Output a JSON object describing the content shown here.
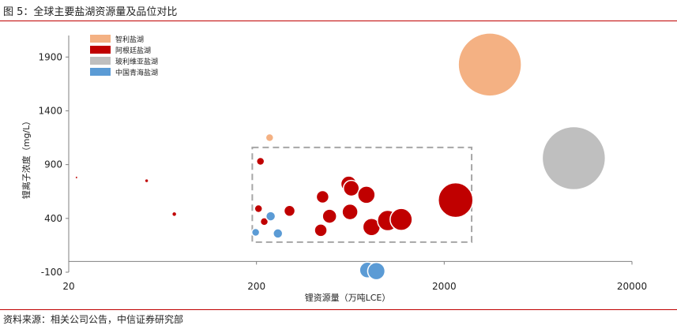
{
  "figure": {
    "title": "图 5：全球主要盐湖资源量及品位对比",
    "source": "资料来源：相关公司公告，中信证券研究部"
  },
  "colors": {
    "chile": "#f4b183",
    "argentina": "#c00000",
    "bolivia": "#bfbfbf",
    "china": "#5b9bd5",
    "rule": "#c00000",
    "highlight_box": "#a6a6a6"
  },
  "chart_data": {
    "type": "bubble",
    "xlabel": "锂资源量（万吨LCE）",
    "ylabel": "锂离子浓度（mg/L）",
    "xscale": "log",
    "xlim": [
      20,
      20000
    ],
    "ylim": [
      -100,
      2100
    ],
    "x_ticks": [
      20,
      200,
      2000,
      20000
    ],
    "x_tick_labels": [
      "20",
      "200",
      "2000",
      "20000"
    ],
    "y_ticks": [
      -100,
      400,
      900,
      1400,
      1900
    ],
    "y_tick_labels": [
      "-100",
      "400",
      "900",
      "1400",
      "1900"
    ],
    "grid": false,
    "legend_position": "top-left",
    "highlight_box": {
      "x": [
        190,
        2800
      ],
      "y": [
        180,
        1060
      ]
    },
    "series": [
      {
        "name": "智利盐湖",
        "color": "#f4b183",
        "points": [
          {
            "x": 235,
            "y": 1150,
            "size": 5
          },
          {
            "x": 3500,
            "y": 1830,
            "size": 40
          }
        ]
      },
      {
        "name": "阿根廷盐湖",
        "color": "#c00000",
        "points": [
          {
            "x": 22,
            "y": 780,
            "size": 1
          },
          {
            "x": 52,
            "y": 750,
            "size": 2
          },
          {
            "x": 73,
            "y": 440,
            "size": 3
          },
          {
            "x": 210,
            "y": 930,
            "size": 5
          },
          {
            "x": 205,
            "y": 490,
            "size": 5
          },
          {
            "x": 220,
            "y": 370,
            "size": 5
          },
          {
            "x": 300,
            "y": 470,
            "size": 7
          },
          {
            "x": 450,
            "y": 600,
            "size": 8
          },
          {
            "x": 440,
            "y": 290,
            "size": 8
          },
          {
            "x": 490,
            "y": 420,
            "size": 9
          },
          {
            "x": 620,
            "y": 720,
            "size": 10
          },
          {
            "x": 640,
            "y": 680,
            "size": 10
          },
          {
            "x": 630,
            "y": 460,
            "size": 10
          },
          {
            "x": 770,
            "y": 620,
            "size": 11
          },
          {
            "x": 820,
            "y": 320,
            "size": 11
          },
          {
            "x": 1000,
            "y": 380,
            "size": 13
          },
          {
            "x": 1180,
            "y": 390,
            "size": 14
          },
          {
            "x": 2300,
            "y": 570,
            "size": 22
          }
        ]
      },
      {
        "name": "玻利维亚盐湖",
        "color": "#bfbfbf",
        "points": [
          {
            "x": 9800,
            "y": 960,
            "size": 40
          }
        ]
      },
      {
        "name": "中国青海盐湖",
        "color": "#5b9bd5",
        "points": [
          {
            "x": 198,
            "y": 270,
            "size": 5
          },
          {
            "x": 238,
            "y": 420,
            "size": 6
          },
          {
            "x": 260,
            "y": 260,
            "size": 6
          },
          {
            "x": 780,
            "y": -80,
            "size": 10
          },
          {
            "x": 870,
            "y": -90,
            "size": 11
          }
        ]
      }
    ]
  }
}
